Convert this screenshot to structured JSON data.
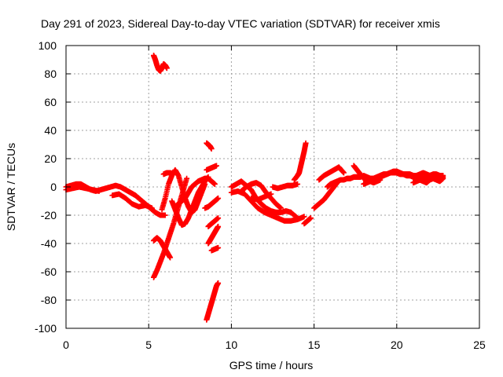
{
  "chart_data": {
    "type": "scatter",
    "title": "Day 291 of 2023, Sidereal Day-to-day VTEC variation (SDTVAR) for receiver xmis",
    "xlabel": "GPS time / hours",
    "ylabel": "SDTVAR / TECUs",
    "xlim": [
      0,
      25
    ],
    "ylim": [
      -100,
      100
    ],
    "x_ticks": [
      0,
      5,
      10,
      15,
      20,
      25
    ],
    "y_ticks": [
      -100,
      -80,
      -60,
      -40,
      -20,
      0,
      20,
      40,
      60,
      80,
      100
    ],
    "grid": true,
    "marker": "+",
    "series": [
      {
        "name": "SDTVAR",
        "color": "#ff0000",
        "segments": [
          {
            "x": [
              0.0,
              0.3,
              0.6,
              0.9,
              1.2,
              1.5,
              1.8,
              2.1,
              2.4,
              2.7,
              3.0,
              3.3,
              3.6,
              3.9,
              4.2,
              4.5,
              4.8,
              5.1,
              5.4,
              5.7,
              6.0
            ],
            "y": [
              0,
              1,
              2,
              2,
              0,
              -2,
              -3,
              -2,
              -1,
              0,
              1,
              0,
              -2,
              -4,
              -6,
              -9,
              -12,
              -15,
              -18,
              -20,
              -20
            ]
          },
          {
            "x": [
              0.0,
              0.4,
              0.8,
              1.2,
              1.6,
              2.0
            ],
            "y": [
              -2,
              -1,
              0,
              -1,
              -2,
              -3
            ]
          },
          {
            "x": [
              2.8,
              3.2,
              3.6,
              4.0,
              4.4,
              4.8,
              5.2
            ],
            "y": [
              -6,
              -5,
              -8,
              -12,
              -14,
              -13,
              -15
            ]
          },
          {
            "x": [
              5.3,
              5.4,
              5.5,
              5.6,
              5.7,
              5.8,
              5.9,
              6.0,
              6.1
            ],
            "y": [
              93,
              90,
              86,
              83,
              82,
              84,
              87,
              86,
              84
            ]
          },
          {
            "x": [
              5.3,
              5.5,
              5.7,
              5.9,
              6.1,
              6.3,
              6.5,
              6.7,
              6.9,
              7.1,
              7.3
            ],
            "y": [
              -64,
              -59,
              -53,
              -47,
              -40,
              -33,
              -26,
              -18,
              -10,
              -2,
              6
            ]
          },
          {
            "x": [
              5.3,
              5.5,
              5.7,
              5.9,
              6.1,
              6.3
            ],
            "y": [
              -38,
              -36,
              -38,
              -42,
              -46,
              -50
            ]
          },
          {
            "x": [
              5.8,
              6.0,
              6.2,
              6.4,
              6.6,
              6.8,
              7.0,
              7.2,
              7.4,
              7.6,
              7.8,
              8.0,
              8.2,
              8.4
            ],
            "y": [
              -16,
              -8,
              2,
              8,
              12,
              8,
              0,
              -8,
              -14,
              -18,
              -16,
              -10,
              -4,
              2
            ]
          },
          {
            "x": [
              6.4,
              6.6,
              6.8,
              7.0,
              7.2,
              7.4,
              7.6,
              7.8,
              8.0,
              8.2,
              8.4,
              8.6
            ],
            "y": [
              -10,
              -16,
              -22,
              -27,
              -26,
              -22,
              -16,
              -10,
              -4,
              0,
              4,
              7
            ]
          },
          {
            "x": [
              5.9,
              6.1,
              6.3,
              6.5
            ],
            "y": [
              9,
              10,
              10,
              9
            ]
          },
          {
            "x": [
              6.6,
              6.8,
              7.0,
              7.2,
              7.4,
              7.6,
              7.8,
              8.0,
              8.2,
              8.4,
              8.6,
              8.8,
              9.0
            ],
            "y": [
              -14,
              -12,
              -10,
              -8,
              -4,
              0,
              2,
              4,
              5,
              6,
              6,
              4,
              2
            ]
          },
          {
            "x": [
              8.5,
              8.6,
              8.7,
              8.8
            ],
            "y": [
              31,
              30,
              29,
              27
            ]
          },
          {
            "x": [
              8.5,
              8.6,
              8.7,
              8.8,
              8.9,
              9.0,
              9.1,
              9.2
            ],
            "y": [
              -94,
              -90,
              -86,
              -82,
              -78,
              -74,
              -70,
              -68
            ]
          },
          {
            "x": [
              8.6,
              8.7,
              8.8,
              8.9,
              9.0,
              9.1,
              9.2
            ],
            "y": [
              -40,
              -38,
              -36,
              -34,
              -32,
              -30,
              -28
            ]
          },
          {
            "x": [
              8.6,
              8.8,
              9.0,
              9.2
            ],
            "y": [
              -28,
              -26,
              -24,
              -22
            ]
          },
          {
            "x": [
              8.8,
              9.0,
              9.2
            ],
            "y": [
              -45,
              -44,
              -43
            ]
          },
          {
            "x": [
              8.4,
              8.6,
              8.8,
              9.0,
              9.2
            ],
            "y": [
              -15,
              -14,
              -12,
              -10,
              -8
            ]
          },
          {
            "x": [
              8.5,
              8.7,
              8.9,
              9.1
            ],
            "y": [
              12,
              13,
              14,
              15
            ]
          },
          {
            "x": [
              10.0,
              10.4,
              10.8,
              11.2,
              11.6,
              12.0,
              12.4,
              12.8,
              13.2,
              13.6,
              14.0,
              14.4
            ],
            "y": [
              -4,
              -3,
              -5,
              -10,
              -15,
              -18,
              -20,
              -22,
              -24,
              -24,
              -23,
              -21
            ]
          },
          {
            "x": [
              10.0,
              10.3,
              10.6,
              10.9,
              11.2,
              11.5,
              11.8,
              12.1,
              12.4,
              12.7,
              13.0,
              13.3,
              13.6,
              14.0
            ],
            "y": [
              0,
              2,
              4,
              1,
              -2,
              -8,
              -12,
              -15,
              -17,
              -18,
              -18,
              -17,
              -18,
              -22
            ]
          },
          {
            "x": [
              10.6,
              10.9,
              11.2,
              11.5,
              11.8,
              12.1,
              12.4,
              12.7,
              13.0
            ],
            "y": [
              -3,
              0,
              2,
              3,
              1,
              -4,
              -8,
              -12,
              -15
            ]
          },
          {
            "x": [
              11.2,
              11.6,
              12.0,
              12.4
            ],
            "y": [
              -8,
              -9,
              -7,
              -5
            ]
          },
          {
            "x": [
              12.5,
              12.8,
              13.1,
              13.4,
              13.7,
              14.0
            ],
            "y": [
              0,
              -1,
              0,
              1,
              1,
              2
            ]
          },
          {
            "x": [
              13.8,
              14.0,
              14.1,
              14.2,
              14.3,
              14.4,
              14.5
            ],
            "y": [
              5,
              8,
              10,
              15,
              20,
              25,
              31
            ]
          },
          {
            "x": [
              14.4,
              14.6,
              14.8
            ],
            "y": [
              -26,
              -24,
              -22
            ]
          },
          {
            "x": [
              15.0,
              15.2,
              15.4,
              15.6,
              15.8,
              16.0,
              16.2,
              16.4
            ],
            "y": [
              -15,
              -13,
              -11,
              -9,
              -6,
              -3,
              0,
              3
            ]
          },
          {
            "x": [
              15.3,
              15.6,
              15.9,
              16.2,
              16.5,
              16.8
            ],
            "y": [
              5,
              8,
              10,
              12,
              14,
              10
            ]
          },
          {
            "x": [
              15.8,
              16.0,
              16.2,
              16.4,
              16.6,
              16.8,
              17.0,
              17.2,
              17.4,
              17.6,
              17.8,
              18.0,
              18.2,
              18.4,
              18.6,
              18.8,
              19.0,
              19.2,
              19.4,
              19.6,
              19.8,
              20.0,
              20.2,
              20.4,
              20.6,
              20.8,
              21.0,
              21.2,
              21.4,
              21.6,
              21.8,
              22.0,
              22.2,
              22.4,
              22.6,
              22.8
            ],
            "y": [
              0,
              2,
              3,
              4,
              5,
              5,
              6,
              6,
              7,
              7,
              7,
              8,
              7,
              6,
              6,
              7,
              8,
              9,
              9,
              10,
              10,
              10,
              9,
              9,
              8,
              8,
              7,
              7,
              6,
              6,
              7,
              7,
              6,
              6,
              7,
              7
            ]
          },
          {
            "x": [
              17.4,
              17.6,
              17.8,
              18.0,
              18.2,
              18.4,
              18.6,
              18.8,
              19.0,
              19.2,
              19.4,
              19.6,
              19.8,
              20.0,
              20.2,
              20.4,
              20.6,
              20.8,
              21.0,
              21.2,
              21.4,
              21.6,
              21.8,
              22.0,
              22.2,
              22.4,
              22.6,
              22.8
            ],
            "y": [
              15,
              12,
              9,
              6,
              5,
              4,
              5,
              6,
              7,
              8,
              9,
              10,
              11,
              11,
              10,
              9,
              9,
              9,
              8,
              8,
              9,
              10,
              9,
              8,
              9,
              9,
              8,
              8
            ]
          },
          {
            "x": [
              21.0,
              21.2,
              21.4,
              21.6,
              21.8,
              22.0,
              22.2,
              22.4,
              22.6,
              22.8
            ],
            "y": [
              3,
              4,
              5,
              4,
              3,
              5,
              6,
              5,
              4,
              6
            ]
          },
          {
            "x": [
              18.0,
              18.2,
              18.4,
              18.6,
              18.8,
              19.0
            ],
            "y": [
              2,
              3,
              4,
              3,
              4,
              5
            ]
          }
        ]
      }
    ]
  }
}
